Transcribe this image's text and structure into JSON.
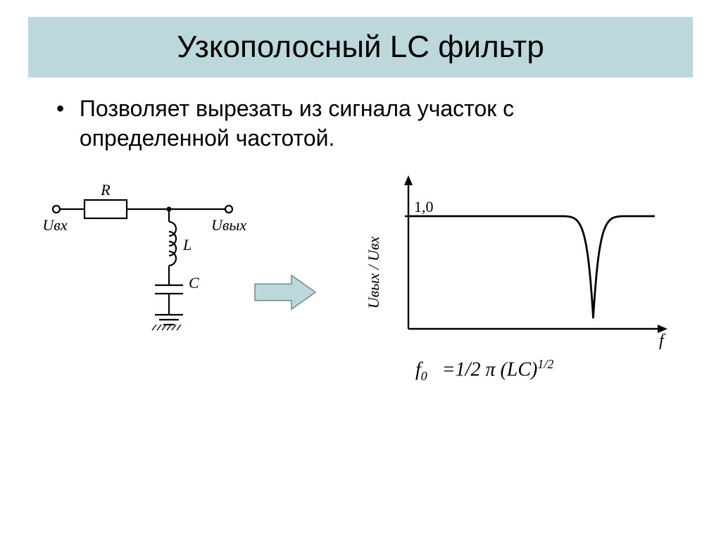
{
  "title": "Узкополосный LC фильтр",
  "bullet_text": "Позволяет вырезать из  сигнала участок с определенной частотой.",
  "colors": {
    "title_bg": "#bdd8dc",
    "arrow_fill": "#bdd8dc",
    "arrow_stroke": "#6e8a8f",
    "stroke": "#000000",
    "background": "#ffffff"
  },
  "circuit": {
    "labels": {
      "R": "R",
      "L": "L",
      "C": "C",
      "Uin": "Uвх",
      "Uout": "Uвых"
    },
    "stroke_width": 2.2
  },
  "arrow": {
    "width": 90,
    "height": 56
  },
  "graph": {
    "y_axis_label": "Uвых / Uвх",
    "y_tick_label": "1,0",
    "x_axis_label": "f",
    "plateau_y_ratio": 0.2,
    "notch_x_ratio": 0.75,
    "notch_depth_ratio": 0.92,
    "notch_halfwidth_ratio": 0.04,
    "axis_stroke_width": 2.4,
    "curve_stroke_width": 2.8
  },
  "formula": {
    "lhs_var": "f",
    "lhs_sub": "0",
    "rhs": " =1/2 π (LC)",
    "exponent": "1/2"
  }
}
